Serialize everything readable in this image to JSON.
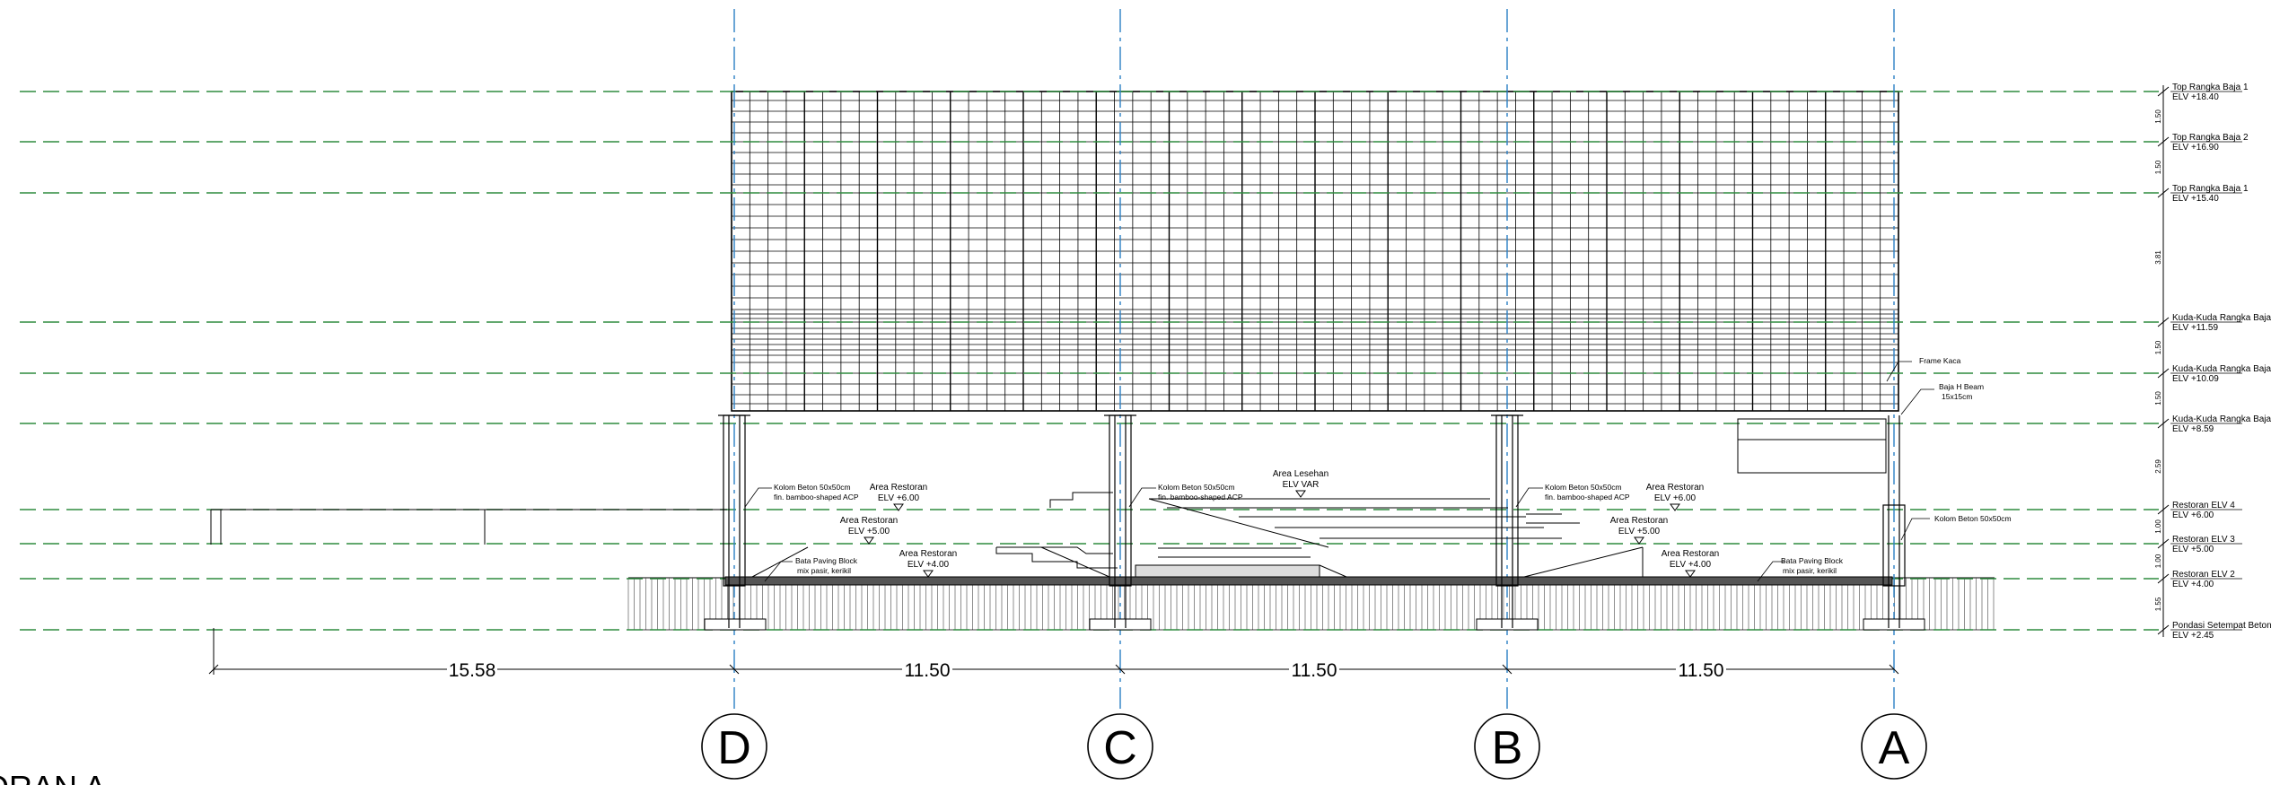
{
  "title": "ORAN A",
  "grid_axes": [
    {
      "label": "D"
    },
    {
      "label": "C"
    },
    {
      "label": "B"
    },
    {
      "label": "A"
    }
  ],
  "levels": [
    {
      "name": "Top Rangka Baja 1",
      "elv": "ELV +18.40"
    },
    {
      "name": "Top Rangka Baja 2",
      "elv": "ELV +16.90"
    },
    {
      "name": "Top Rangka Baja 1",
      "elv": "ELV +15.40"
    },
    {
      "name": "Kuda-Kuda Rangka Baja",
      "elv": "ELV +11.59"
    },
    {
      "name": "Kuda-Kuda Rangka Baja",
      "elv": "ELV +10.09"
    },
    {
      "name": "Kuda-Kuda Rangka Baja",
      "elv": "ELV +8.59"
    },
    {
      "name": "Restoran ELV 4",
      "elv": "ELV +6.00"
    },
    {
      "name": "Restoran ELV 3",
      "elv": "ELV +5.00"
    },
    {
      "name": "Restoran ELV 2",
      "elv": "ELV +4.00"
    },
    {
      "name": "Pondasi Setempat Beton",
      "elv": "ELV +2.45"
    }
  ],
  "vertical_dims": [
    "1.50",
    "1.50",
    "3.81",
    "1.50",
    "1.50",
    "2.59",
    "1.00",
    "1.00",
    "1.55"
  ],
  "horizontal_dims": [
    "15.58",
    "11.50",
    "11.50",
    "11.50"
  ],
  "annotations": {
    "frame_kaca": "Frame Kaca",
    "baja_h_beam": [
      "Baja H Beam",
      "15x15cm"
    ],
    "kolom_beton_right": "Kolom Beton 50x50cm",
    "kolom_d": [
      "Kolom Beton 50x50cm",
      "fin. bamboo-shaped ACP"
    ],
    "kolom_c": [
      "Kolom Beton 50x50cm",
      "fin. bamboo-shaped ACP"
    ],
    "kolom_b": [
      "Kolom Beton 50x50cm",
      "fin. bamboo-shaped ACP"
    ],
    "paving_left": [
      "Bata Paving Block",
      "mix pasir, kerikil"
    ],
    "paving_right": [
      "Bata Paving Block",
      "mix pasir, kerikil"
    ]
  },
  "areas": {
    "restoran_6_left": [
      "Area Restoran",
      "ELV +6.00"
    ],
    "restoran_5_left": [
      "Area Restoran",
      "ELV +5.00"
    ],
    "restoran_4_left": [
      "Area Restoran",
      "ELV +4.00"
    ],
    "lesehan": [
      "Area Lesehan",
      "ELV VAR"
    ],
    "restoran_6_right": [
      "Area Restoran",
      "ELV +6.00"
    ],
    "restoran_5_right": [
      "Area Restoran",
      "ELV +5.00"
    ],
    "restoran_4_right": [
      "Area Restoran",
      "ELV +4.00"
    ]
  },
  "colors": {
    "level_line": "#2e8b3f",
    "grid_line": "#2b7fc4",
    "linework": "#000000"
  }
}
